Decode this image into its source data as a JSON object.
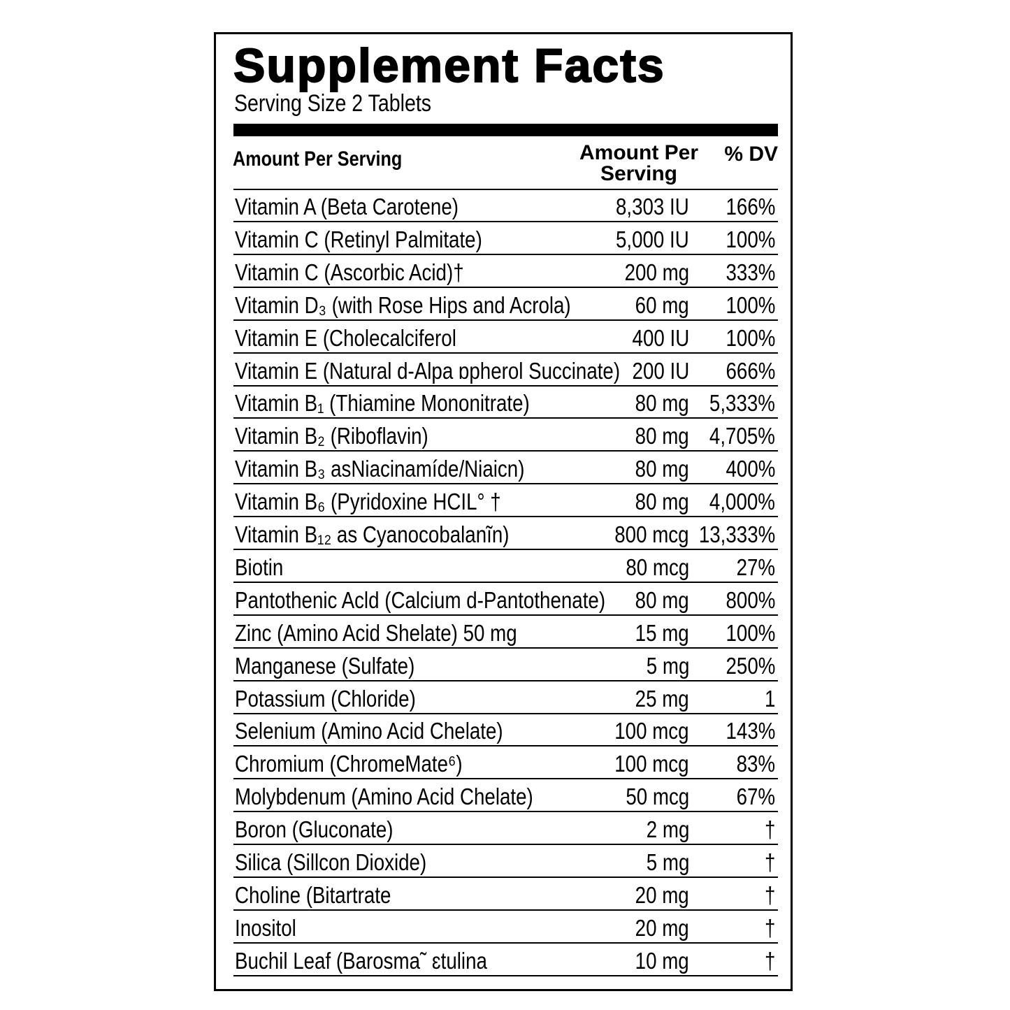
{
  "header": {
    "title": "Supplement Facts",
    "serving_size": "Serving Size 2 Tablets"
  },
  "table": {
    "columns": [
      "Amount Per Serving",
      "Amount Per Serving",
      "% DV"
    ],
    "rows": [
      [
        "Vitamin A (Beta Carotene)",
        "8,303 IU",
        "166%"
      ],
      [
        "Vitamin C (Retinyl Palmitate)",
        "5,000 IU",
        "100%"
      ],
      [
        "Vitamin C (Ascorbic Acid)†",
        "200 mg",
        "333%"
      ],
      [
        "Vitamin D₃ (with Rose Hips and Acrola)",
        "60 mg",
        "100%"
      ],
      [
        "Vitamin E (Cholecalciferol",
        "400 IU",
        "100%"
      ],
      [
        "Vitamin E (Natural d-Alpa ɒpherol Succinate)",
        "200 IU",
        "666%"
      ],
      [
        "Vitamin B₁ (Thiamine Mononitrate)",
        "80 mg",
        "5,333%"
      ],
      [
        "Vitamin B₂ (Riboflavin)",
        "80 mg",
        "4,705%"
      ],
      [
        "Vitamin B₃ asNiacinamíde/Niaicn)",
        "80 mg",
        "400%"
      ],
      [
        "Vitamin B₆ (Pyridoxine HCIL° †",
        "80 mg",
        "4,000%"
      ],
      [
        "Vitamin B₁₂ as Cyanocobalanĩn)",
        "800 mcg",
        "13,333%"
      ],
      [
        "Biotin",
        "80 mcg",
        "27%"
      ],
      [
        "Pantothenic Acld (Calcium d-Pantothenate)",
        "80 mg",
        "800%"
      ],
      [
        "Zinc (Amino Acid Shelate)  50 mg",
        "15 mg",
        "100%"
      ],
      [
        "Manganese (Sulfate)",
        "5 mg",
        "250%"
      ],
      [
        "Potassium (Chloride)",
        "25 mg",
        "1"
      ],
      [
        "Selenium (Amino Acid Chelate)",
        "100 mcg",
        "143%"
      ],
      [
        "Chromium (ChromeMate⁶)",
        "100 mcg",
        "83%"
      ],
      [
        "Molybdenum (Amino Acid Chelate)",
        "50 mcg",
        "67%"
      ],
      [
        "Boron (Gluconate)",
        "2 mg",
        "†"
      ],
      [
        "Silica (Sillcon Dioxide)",
        "5 mg",
        "†"
      ],
      [
        "Choline (Bitartrate",
        "20 mg",
        "†"
      ],
      [
        "Inositol",
        "20 mg",
        "†"
      ],
      [
        "Buchil Leaf    (Barosma˜ ɛtulina",
        "10 mg",
        "†"
      ]
    ]
  }
}
